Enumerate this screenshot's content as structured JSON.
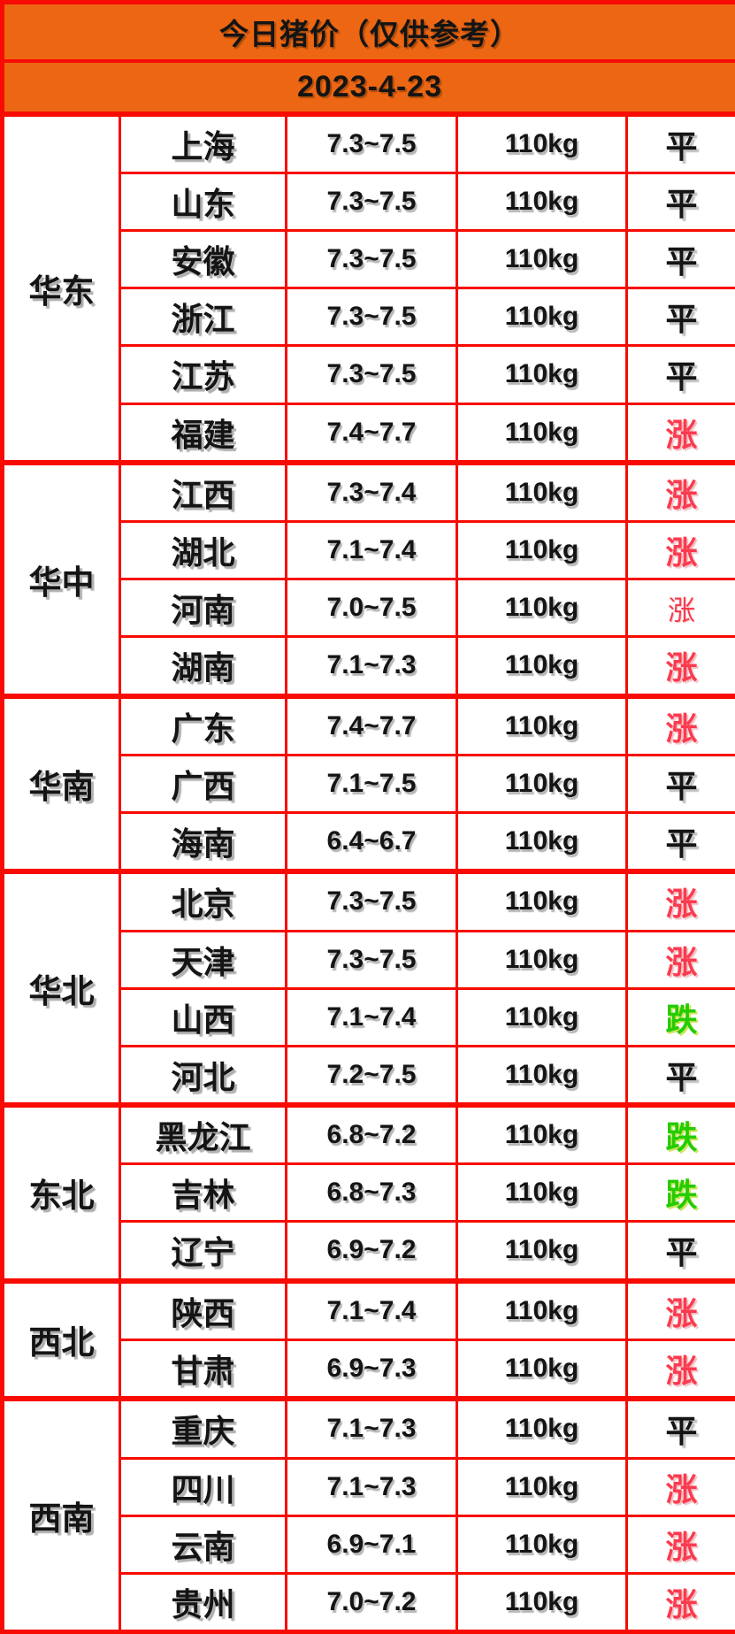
{
  "header": {
    "title": "今日猪价（仅供参考）",
    "date": "2023-4-23"
  },
  "colors": {
    "header_bg": "#EC6613",
    "border": "#F70B02",
    "up": "#FB3B4E",
    "down": "#24CC04",
    "text": "#141414"
  },
  "chart_data": {
    "type": "table",
    "title": "今日猪价（仅供参考）",
    "date": "2023-4-23",
    "columns": [
      "region",
      "province",
      "price_range",
      "weight",
      "status"
    ],
    "legend": {
      "up": "涨",
      "down": "跌",
      "flat": "平"
    },
    "regions": [
      {
        "name": "华东",
        "rows": [
          {
            "province": "上海",
            "price": "7.3~7.5",
            "weight": "110kg",
            "status": "平",
            "trend": "flat"
          },
          {
            "province": "山东",
            "price": "7.3~7.5",
            "weight": "110kg",
            "status": "平",
            "trend": "flat"
          },
          {
            "province": "安徽",
            "price": "7.3~7.5",
            "weight": "110kg",
            "status": "平",
            "trend": "flat"
          },
          {
            "province": "浙江",
            "price": "7.3~7.5",
            "weight": "110kg",
            "status": "平",
            "trend": "flat"
          },
          {
            "province": "江苏",
            "price": "7.3~7.5",
            "weight": "110kg",
            "status": "平",
            "trend": "flat"
          },
          {
            "province": "福建",
            "price": "7.4~7.7",
            "weight": "110kg",
            "status": "涨",
            "trend": "up"
          }
        ]
      },
      {
        "name": "华中",
        "rows": [
          {
            "province": "江西",
            "price": "7.3~7.4",
            "weight": "110kg",
            "status": "涨",
            "trend": "up"
          },
          {
            "province": "湖北",
            "price": "7.1~7.4",
            "weight": "110kg",
            "status": "涨",
            "trend": "up"
          },
          {
            "province": "河南",
            "price": "7.0~7.5",
            "weight": "110kg",
            "status": "涨",
            "trend": "up",
            "variant": "light"
          },
          {
            "province": "湖南",
            "price": "7.1~7.3",
            "weight": "110kg",
            "status": "涨",
            "trend": "up"
          }
        ]
      },
      {
        "name": "华南",
        "rows": [
          {
            "province": "广东",
            "price": "7.4~7.7",
            "weight": "110kg",
            "status": "涨",
            "trend": "up"
          },
          {
            "province": "广西",
            "price": "7.1~7.5",
            "weight": "110kg",
            "status": "平",
            "trend": "flat"
          },
          {
            "province": "海南",
            "price": "6.4~6.7",
            "weight": "110kg",
            "status": "平",
            "trend": "flat"
          }
        ]
      },
      {
        "name": "华北",
        "rows": [
          {
            "province": "北京",
            "price": "7.3~7.5",
            "weight": "110kg",
            "status": "涨",
            "trend": "up"
          },
          {
            "province": "天津",
            "price": "7.3~7.5",
            "weight": "110kg",
            "status": "涨",
            "trend": "up"
          },
          {
            "province": "山西",
            "price": "7.1~7.4",
            "weight": "110kg",
            "status": "跌",
            "trend": "down"
          },
          {
            "province": "河北",
            "price": "7.2~7.5",
            "weight": "110kg",
            "status": "平",
            "trend": "flat"
          }
        ]
      },
      {
        "name": "东北",
        "rows": [
          {
            "province": "黑龙江",
            "price": "6.8~7.2",
            "weight": "110kg",
            "status": "跌",
            "trend": "down"
          },
          {
            "province": "吉林",
            "price": "6.8~7.3",
            "weight": "110kg",
            "status": "跌",
            "trend": "down"
          },
          {
            "province": "辽宁",
            "price": "6.9~7.2",
            "weight": "110kg",
            "status": "平",
            "trend": "flat"
          }
        ]
      },
      {
        "name": "西北",
        "rows": [
          {
            "province": "陕西",
            "price": "7.1~7.4",
            "weight": "110kg",
            "status": "涨",
            "trend": "up"
          },
          {
            "province": "甘肃",
            "price": "6.9~7.3",
            "weight": "110kg",
            "status": "涨",
            "trend": "up"
          }
        ]
      },
      {
        "name": "西南",
        "rows": [
          {
            "province": "重庆",
            "price": "7.1~7.3",
            "weight": "110kg",
            "status": "平",
            "trend": "flat"
          },
          {
            "province": "四川",
            "price": "7.1~7.3",
            "weight": "110kg",
            "status": "涨",
            "trend": "up"
          },
          {
            "province": "云南",
            "price": "6.9~7.1",
            "weight": "110kg",
            "status": "涨",
            "trend": "up"
          },
          {
            "province": "贵州",
            "price": "7.0~7.2",
            "weight": "110kg",
            "status": "涨",
            "trend": "up"
          }
        ]
      }
    ]
  }
}
